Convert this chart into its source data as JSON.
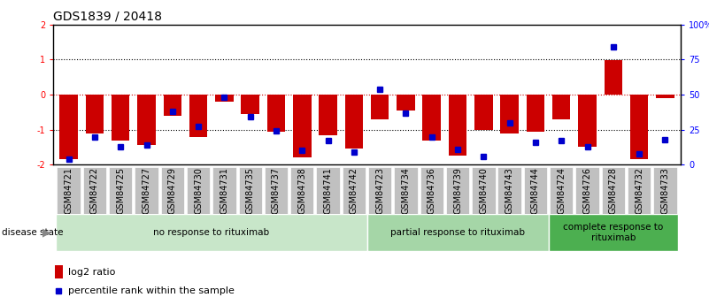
{
  "title": "GDS1839 / 20418",
  "samples": [
    "GSM84721",
    "GSM84722",
    "GSM84725",
    "GSM84727",
    "GSM84729",
    "GSM84730",
    "GSM84731",
    "GSM84735",
    "GSM84737",
    "GSM84738",
    "GSM84741",
    "GSM84742",
    "GSM84723",
    "GSM84734",
    "GSM84736",
    "GSM84739",
    "GSM84740",
    "GSM84743",
    "GSM84744",
    "GSM84724",
    "GSM84726",
    "GSM84728",
    "GSM84732",
    "GSM84733"
  ],
  "log2_ratio": [
    -1.85,
    -1.1,
    -1.3,
    -1.45,
    -0.6,
    -1.2,
    -0.2,
    -0.55,
    -1.05,
    -1.8,
    -1.15,
    -1.55,
    -0.7,
    -0.45,
    -1.3,
    -1.75,
    -1.0,
    -1.1,
    -1.05,
    -0.7,
    -1.5,
    0.98,
    -1.85,
    -0.1
  ],
  "percentile": [
    4,
    20,
    13,
    14,
    38,
    27,
    48,
    34,
    24,
    10,
    17,
    9,
    54,
    37,
    20,
    11,
    6,
    30,
    16,
    17,
    13,
    84,
    8,
    18
  ],
  "groups": [
    {
      "label": "no response to rituximab",
      "start": 0,
      "end": 12,
      "color": "#c8e6c9"
    },
    {
      "label": "partial response to rituximab",
      "start": 12,
      "end": 19,
      "color": "#a5d6a7"
    },
    {
      "label": "complete response to\nrituximab",
      "start": 19,
      "end": 24,
      "color": "#4caf50"
    }
  ],
  "ylim": [
    -2,
    2
  ],
  "right_ytick_pct": [
    0,
    25,
    50,
    75,
    100
  ],
  "right_yticklabels": [
    "0",
    "25",
    "50",
    "75",
    "100%"
  ],
  "bar_color": "#cc0000",
  "dot_color": "#0000cc",
  "bar_width": 0.7,
  "hline0_color": "#cc0000",
  "hline_color": "#000000",
  "background_color": "#ffffff",
  "title_fontsize": 10,
  "tick_fontsize": 7,
  "legend_fontsize": 8,
  "label_bg_color": "#c0c0c0"
}
